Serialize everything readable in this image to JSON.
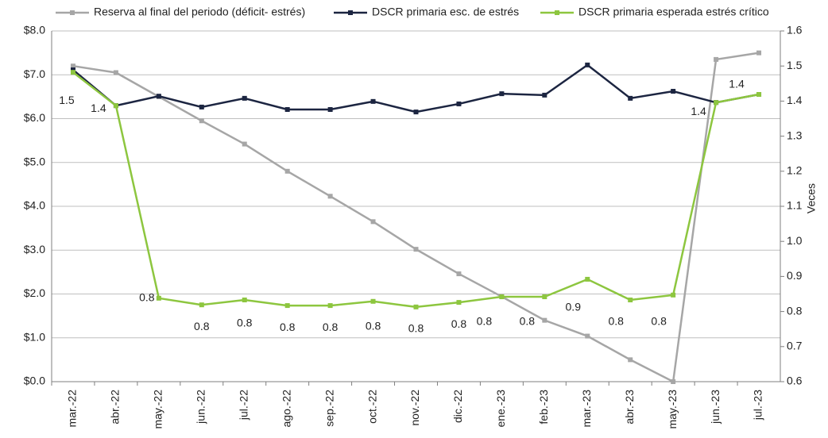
{
  "chart_data": {
    "type": "line",
    "y2label": "Veces",
    "categories": [
      "mar.-22",
      "abr.-22",
      "may.-22",
      "jun.-22",
      "jul.-22",
      "ago.-22",
      "sep.-22",
      "oct.-22",
      "nov.-22",
      "dic.-22",
      "ene.-23",
      "feb.-23",
      "mar.-23",
      "abr.-23",
      "may.-23",
      "jun.-23",
      "jul.-23"
    ],
    "series": [
      {
        "name": "Reserva al final del periodo (déficit- estrés)",
        "color": "#a6a6a6",
        "axis": "y",
        "values": [
          7.2,
          7.05,
          6.5,
          5.95,
          5.42,
          4.8,
          4.23,
          3.65,
          3.02,
          2.46,
          1.94,
          1.4,
          1.04,
          0.5,
          0.0,
          7.35,
          7.5
        ]
      },
      {
        "name": "DSCR primaria esc. de estrés",
        "color": "#1c2541",
        "axis": "y2",
        "values": [
          1.489,
          1.387,
          1.414,
          1.383,
          1.408,
          1.376,
          1.376,
          1.399,
          1.369,
          1.392,
          1.421,
          1.417,
          1.503,
          1.408,
          1.428,
          1.396,
          1.419
        ]
      },
      {
        "name": "DSCR primaria esperada estrés crítico",
        "color": "#8dc63f",
        "axis": "y2",
        "values": [
          1.482,
          1.387,
          0.838,
          0.819,
          0.833,
          0.817,
          0.817,
          0.829,
          0.813,
          0.826,
          0.842,
          0.842,
          0.892,
          0.833,
          0.847,
          1.396,
          1.419
        ],
        "value_labels": [
          "1.5",
          "1.4",
          "0.8",
          "0.8",
          "0.8",
          "0.8",
          "0.8",
          "0.8",
          "0.8",
          "0.8",
          "0.8",
          "0.8",
          "0.9",
          "0.8",
          "0.8",
          "1.4",
          "1.4"
        ]
      }
    ],
    "ylim": [
      0,
      8
    ],
    "yticks": [
      {
        "value": 0,
        "label": "$0.0"
      },
      {
        "value": 1,
        "label": "$1.0"
      },
      {
        "value": 2,
        "label": "$2.0"
      },
      {
        "value": 3,
        "label": "$3.0"
      },
      {
        "value": 4,
        "label": "$4.0"
      },
      {
        "value": 5,
        "label": "$5.0"
      },
      {
        "value": 6,
        "label": "$6.0"
      },
      {
        "value": 7,
        "label": "$7.0"
      },
      {
        "value": 8,
        "label": "$8.0"
      }
    ],
    "y2lim": [
      0.6,
      1.6
    ],
    "y2ticks": [
      0.6,
      0.7,
      0.8,
      0.9,
      {
        "value": 1,
        "label": "1.0"
      },
      1.1,
      1.2,
      1.3,
      1.4,
      1.5,
      1.6
    ],
    "grid": true
  }
}
